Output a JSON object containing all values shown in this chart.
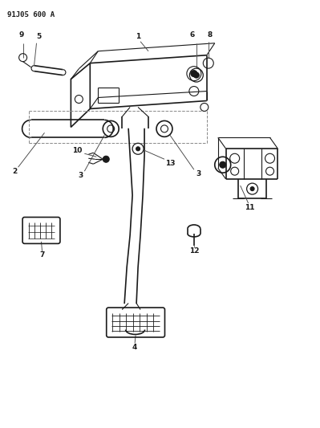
{
  "title": "91J05 600 A",
  "bg_color": "#ffffff",
  "line_color": "#1a1a1a",
  "figsize": [
    3.99,
    5.33
  ],
  "dpi": 100
}
